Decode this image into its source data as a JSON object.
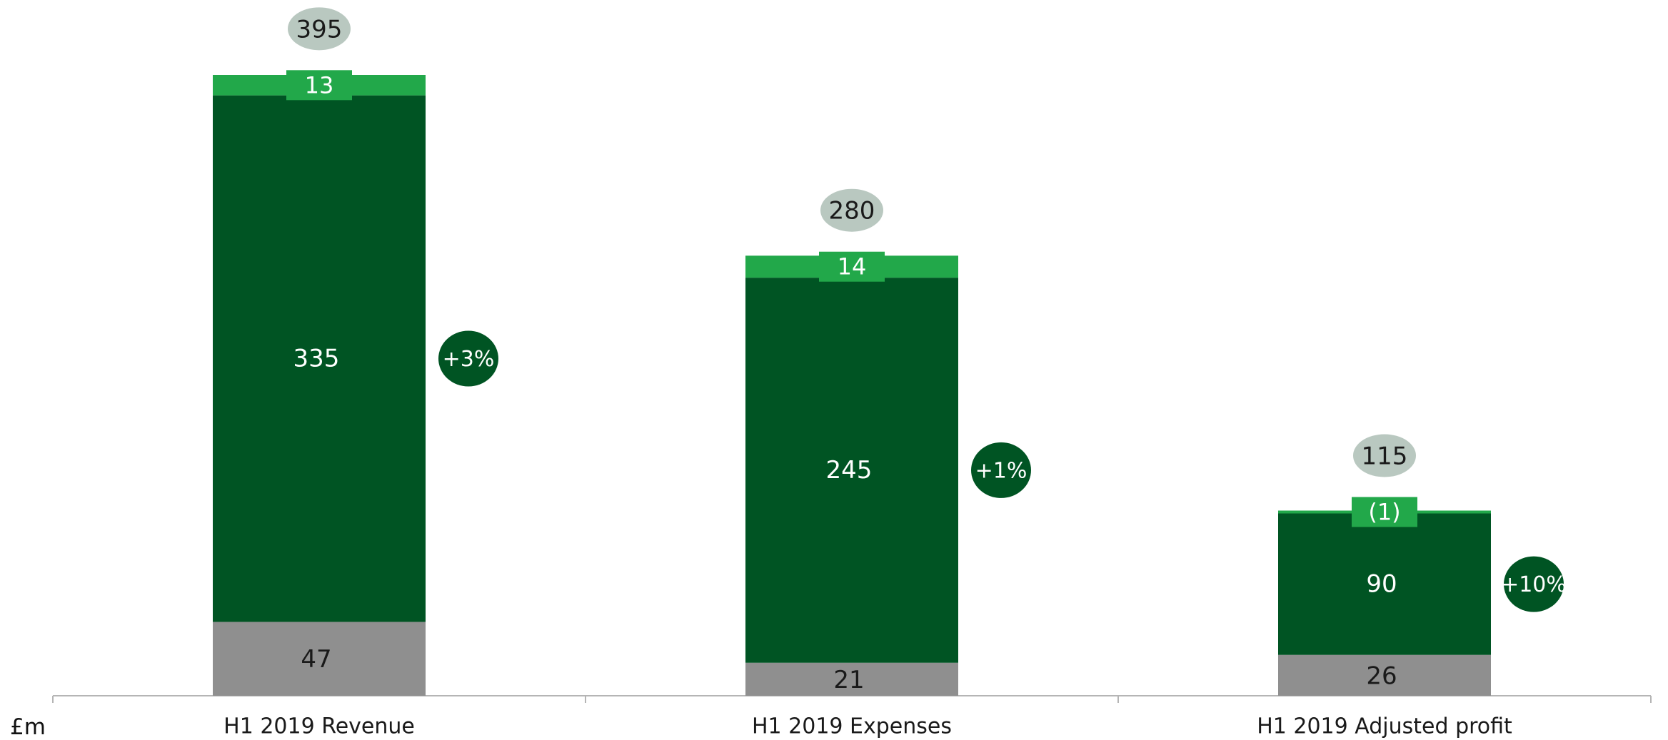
{
  "chart_data": {
    "type": "bar",
    "stacked": true,
    "unit_label": "£m",
    "categories": [
      "H1 2019 Revenue",
      "H1 2019 Expenses",
      "H1 2019 Adjusted profit"
    ],
    "series": [
      {
        "values": [
          47,
          21,
          26
        ],
        "labels": [
          "47",
          "21",
          "26"
        ],
        "color": "#8f8f8f"
      },
      {
        "values": [
          335,
          245,
          90
        ],
        "labels": [
          "335",
          "245",
          "90"
        ],
        "color": "#005423"
      },
      {
        "values": [
          13,
          14,
          -1
        ],
        "labels": [
          "13",
          "14",
          "(1)"
        ],
        "color": "#22a84a"
      }
    ],
    "totals": {
      "values": [
        395,
        280,
        115
      ],
      "labels": [
        "395",
        "280",
        "115"
      ],
      "color": "#b9c8c0"
    },
    "growth": {
      "labels": [
        "+3%",
        "+1%",
        "+10%"
      ],
      "color": "#005423"
    },
    "ylim": [
      0,
      395
    ],
    "grid": false,
    "legend": "none"
  }
}
